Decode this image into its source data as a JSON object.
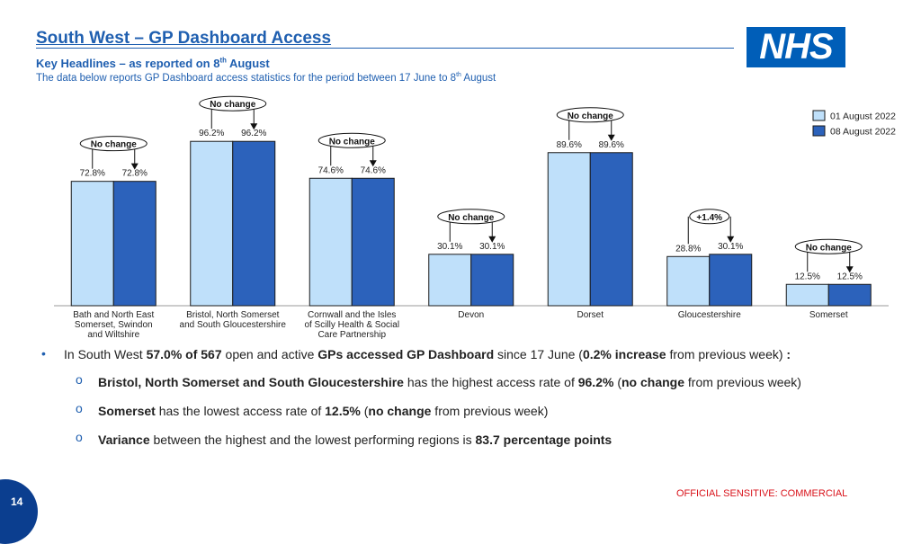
{
  "header": {
    "title": "South West – GP Dashboard Access",
    "subtitle_pre": "Key Headlines – as reported on 8",
    "subtitle_sup": "th",
    "subtitle_post": " August",
    "desc_pre": "The data below reports GP Dashboard access statistics for the period between 17 June to 8",
    "desc_sup": "th",
    "desc_post": " August"
  },
  "logo": {
    "text": "NHS",
    "color": "#005eb8"
  },
  "chart_data": {
    "type": "bar",
    "categories": [
      "Bath and North East Somerset, Swindon and Wiltshire",
      "Bristol, North Somerset and South Gloucestershire",
      "Cornwall and the Isles of Scilly Health & Social Care Partnership",
      "Devon",
      "Dorset",
      "Gloucestershire",
      "Somerset"
    ],
    "category_lines": [
      [
        "Bath and North East",
        "Somerset, Swindon",
        "and Wiltshire"
      ],
      [
        "Bristol, North Somerset",
        "and South Gloucestershire"
      ],
      [
        "Cornwall and the Isles",
        "of Scilly Health & Social",
        "Care Partnership"
      ],
      [
        "Devon"
      ],
      [
        "Dorset"
      ],
      [
        "Gloucestershire"
      ],
      [
        "Somerset"
      ]
    ],
    "series": [
      {
        "name": "01 August 2022",
        "values": [
          72.8,
          96.2,
          74.6,
          30.1,
          89.6,
          28.8,
          12.5
        ],
        "labels": [
          "72.8%",
          "96.2%",
          "74.6%",
          "30.1%",
          "89.6%",
          "28.8%",
          "12.5%"
        ],
        "color": "#bfe0fa"
      },
      {
        "name": "08 August 2022",
        "values": [
          72.8,
          96.2,
          74.6,
          30.1,
          89.6,
          30.1,
          12.5
        ],
        "labels": [
          "72.8%",
          "96.2%",
          "74.6%",
          "30.1%",
          "89.6%",
          "30.1%",
          "12.5%"
        ],
        "color": "#2c62bb"
      }
    ],
    "annotations": [
      "No change",
      "No change",
      "No change",
      "No change",
      "No change",
      "+1.4%",
      "No change"
    ],
    "ylim": [
      0,
      100
    ],
    "legend": "top-right",
    "grid": false
  },
  "bullets": {
    "main": [
      {
        "t": "In South West ",
        "b": false
      },
      {
        "t": "57.0% of 567",
        "b": true
      },
      {
        "t": " open and active ",
        "b": false
      },
      {
        "t": "GPs accessed GP Dashboard",
        "b": true
      },
      {
        "t": " since 17 June (",
        "b": false
      },
      {
        "t": "0.2% increase",
        "b": true
      },
      {
        "t": " from previous week) ",
        "b": false
      },
      {
        "t": ":",
        "b": true
      }
    ],
    "subs": [
      [
        {
          "t": "Bristol, North Somerset and South Gloucestershire",
          "b": true
        },
        {
          "t": " has the highest access rate of ",
          "b": false
        },
        {
          "t": "96.2%",
          "b": true
        },
        {
          "t": " (",
          "b": false
        },
        {
          "t": "no change",
          "b": true
        },
        {
          "t": " from previous week)",
          "b": false
        }
      ],
      [
        {
          "t": "Somerset",
          "b": true
        },
        {
          "t": " has the lowest access rate of ",
          "b": false
        },
        {
          "t": "12.5%",
          "b": true
        },
        {
          "t": " (",
          "b": false
        },
        {
          "t": "no change",
          "b": true
        },
        {
          "t": " from previous week)",
          "b": false
        }
      ],
      [
        {
          "t": "Variance",
          "b": true
        },
        {
          "t": " between the highest and the lowest performing regions is ",
          "b": false
        },
        {
          "t": "83.7 percentage points",
          "b": true
        }
      ]
    ],
    "bullet_glyph": "•",
    "sub_glyph": "o"
  },
  "footer": {
    "classification": "OFFICIAL SENSITIVE: COMMERCIAL",
    "page_number": "14"
  }
}
